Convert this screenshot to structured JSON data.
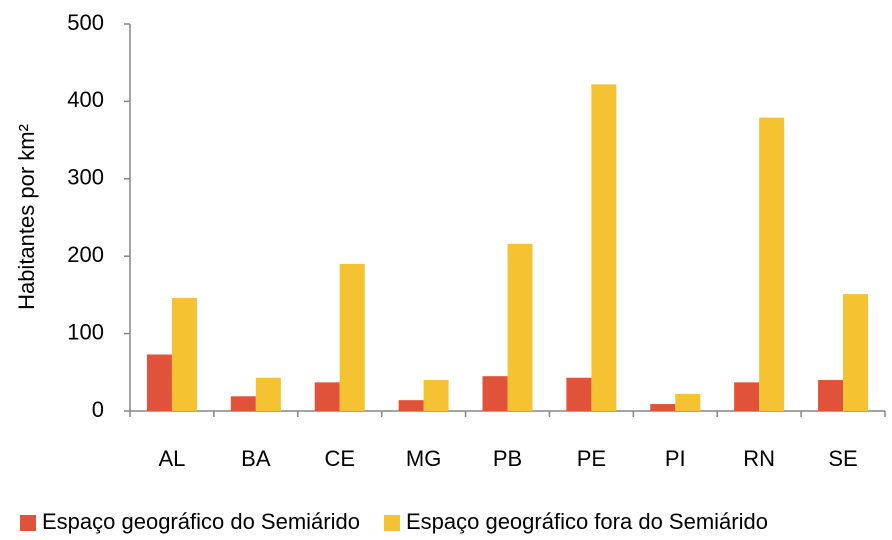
{
  "chart_data": {
    "type": "bar",
    "y_label": "Habitantes por km²",
    "categories": [
      "AL",
      "BA",
      "CE",
      "MG",
      "PB",
      "PE",
      "PI",
      "RN",
      "SE"
    ],
    "series": [
      {
        "name": "Espaço geográfico do Semiárido",
        "color": "#e0533a",
        "values": [
          73,
          19,
          37,
          14,
          45,
          43,
          9,
          37,
          40
        ]
      },
      {
        "name": "Espaço geográfico fora do Semiárido",
        "color": "#f5c232",
        "values": [
          146,
          43,
          190,
          40,
          216,
          422,
          22,
          379,
          151
        ]
      }
    ],
    "ylim": [
      0,
      500
    ],
    "yticks": [
      0,
      100,
      200,
      300,
      400,
      500
    ],
    "legend": "bottom"
  }
}
